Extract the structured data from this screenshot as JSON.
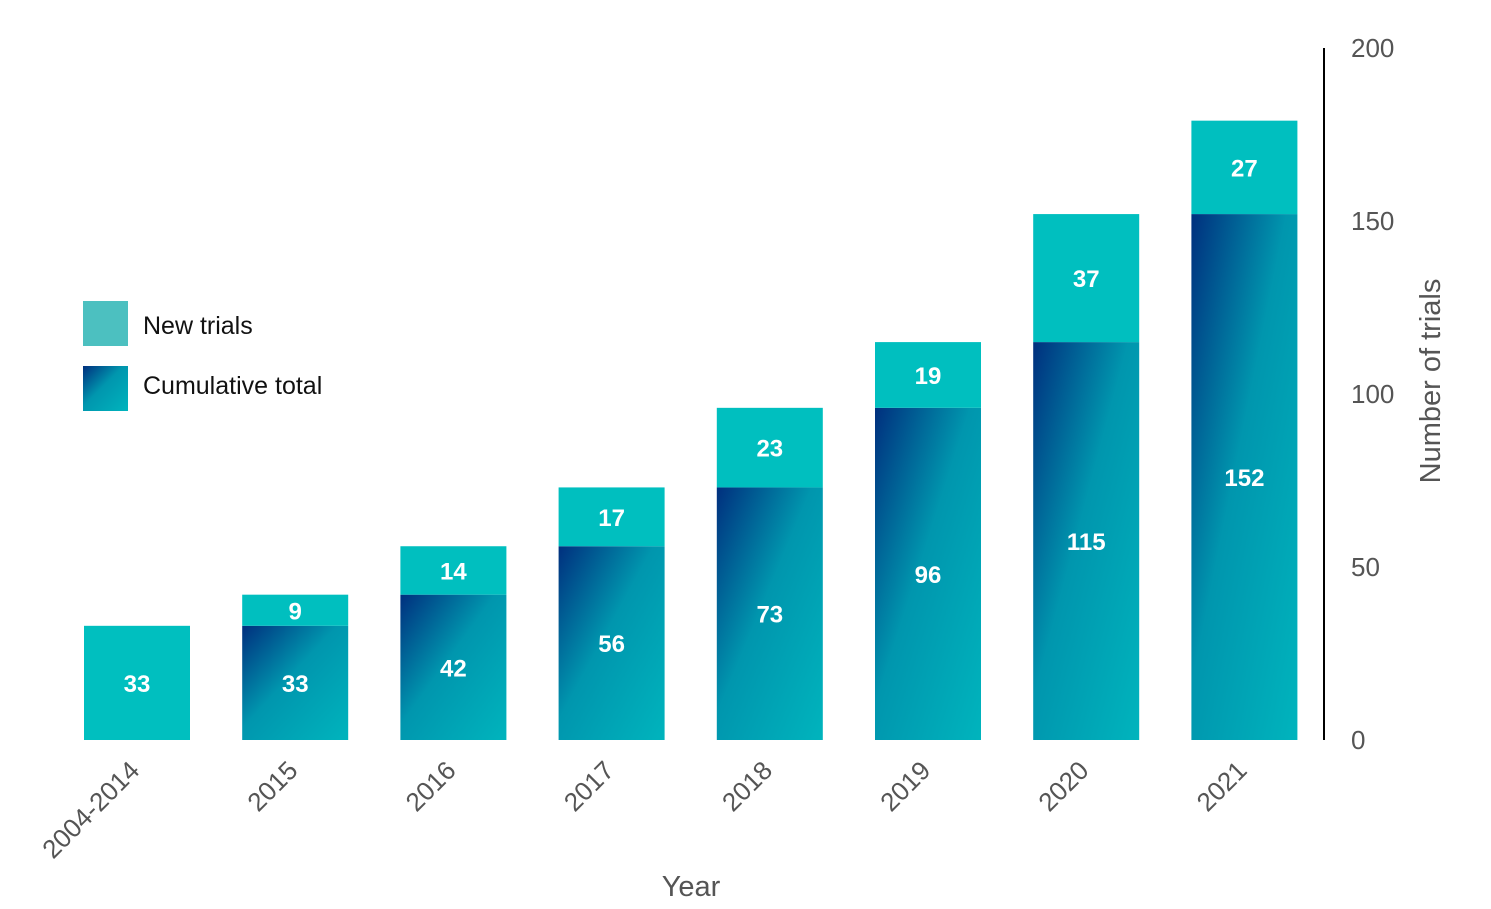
{
  "chart_data": {
    "type": "bar",
    "stacked": true,
    "categories": [
      "2004-2014",
      "2015",
      "2016",
      "2017",
      "2018",
      "2019",
      "2020",
      "2021"
    ],
    "series": [
      {
        "name": "Cumulative total",
        "values": [
          0,
          33,
          42,
          56,
          73,
          96,
          115,
          152
        ]
      },
      {
        "name": "New trials",
        "values": [
          33,
          9,
          14,
          17,
          23,
          19,
          37,
          27
        ]
      }
    ],
    "xlabel": "Year",
    "ylabel": "Number of trials",
    "ylim": [
      0,
      200
    ],
    "yticks": [
      "0",
      "50",
      "100",
      "150",
      "200"
    ],
    "y_axis_position": "right",
    "legend_position": "left",
    "grid": false,
    "colors": {
      "new_trials": "#00bfbf",
      "cumulative_dark": "#002f7e",
      "cumulative_light": "#00a8b8",
      "legend_new_trials": "#4cc0c0"
    }
  }
}
